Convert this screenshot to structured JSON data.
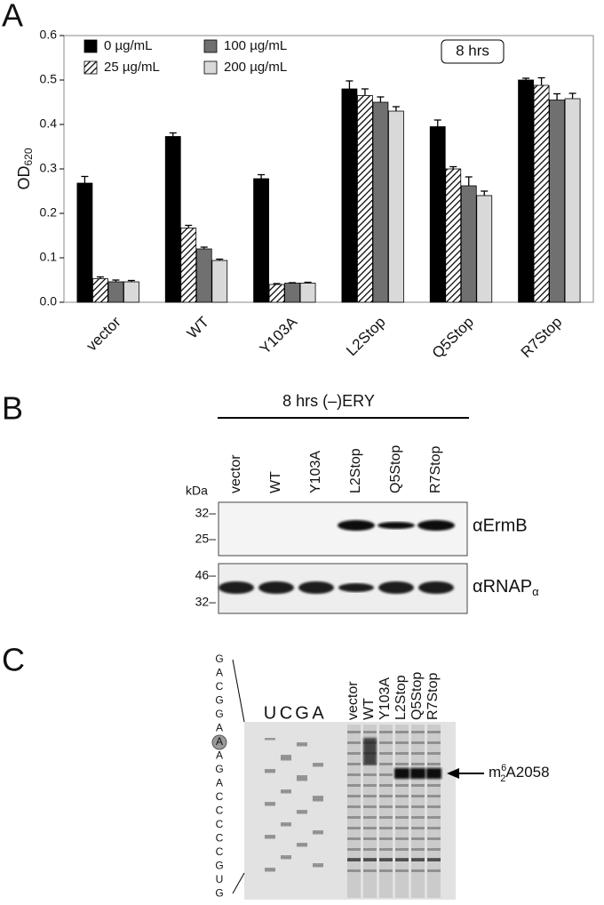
{
  "chart_data": {
    "type": "bar",
    "panel_label": "A",
    "ylabel": "OD",
    "ylabel_sub": "620",
    "annotation": "8 hrs",
    "categories": [
      "vector",
      "WT",
      "Y103A",
      "L2Stop",
      "Q5Stop",
      "R7Stop"
    ],
    "series": [
      {
        "name": "0 µg/mL",
        "color": "#000000",
        "values": [
          0.268,
          0.373,
          0.278,
          0.48,
          0.395,
          0.5
        ],
        "errors": [
          0.015,
          0.008,
          0.009,
          0.018,
          0.015,
          0.004
        ]
      },
      {
        "name": "25 µg/mL",
        "color": "#ffffff",
        "pattern": "hatch",
        "values": [
          0.053,
          0.167,
          0.04,
          0.465,
          0.3,
          0.488
        ],
        "errors": [
          0.004,
          0.006,
          0.002,
          0.015,
          0.005,
          0.017
        ]
      },
      {
        "name": "100 µg/mL",
        "color": "#707070",
        "values": [
          0.046,
          0.12,
          0.043,
          0.45,
          0.262,
          0.455
        ],
        "errors": [
          0.004,
          0.004,
          0.001,
          0.012,
          0.02,
          0.014
        ]
      },
      {
        "name": "200 µg/mL",
        "color": "#d9d9d9",
        "values": [
          0.046,
          0.094,
          0.043,
          0.43,
          0.24,
          0.458
        ],
        "errors": [
          0.003,
          0.003,
          0.002,
          0.01,
          0.01,
          0.012
        ]
      }
    ],
    "ylim": [
      0,
      0.6
    ],
    "yticks": [
      {
        "value": 0,
        "label": "0.0"
      },
      0.1,
      0.2,
      0.3,
      0.4,
      0.5,
      0.6
    ],
    "legend": "top-left"
  },
  "blot": {
    "panel_label": "B",
    "condition": "8 hrs (–)ERY",
    "lanes": [
      "vector",
      "WT",
      "Y103A",
      "L2Stop",
      "Q5Stop",
      "R7Stop"
    ],
    "unit": "kDa",
    "top": {
      "antibody": "αErmB",
      "markers": [
        "32–",
        "25–"
      ]
    },
    "bottom": {
      "antibody": "αRNAP",
      "antibody_sub": "α",
      "markers": [
        "46–",
        "32–"
      ]
    }
  },
  "gel": {
    "panel_label": "C",
    "sequence": [
      "G",
      "A",
      "C",
      "G",
      "G",
      "A",
      "A",
      "A",
      "G",
      "A",
      "C",
      "C",
      "C",
      "C",
      "C",
      "G",
      "U",
      "G"
    ],
    "ladder": [
      "U",
      "C",
      "G",
      "A"
    ],
    "lanes": [
      "vector",
      "WT",
      "Y103A",
      "L2Stop",
      "Q5Stop",
      "R7Stop"
    ],
    "annotation": [
      "m",
      "2",
      "6",
      "A2058"
    ]
  }
}
